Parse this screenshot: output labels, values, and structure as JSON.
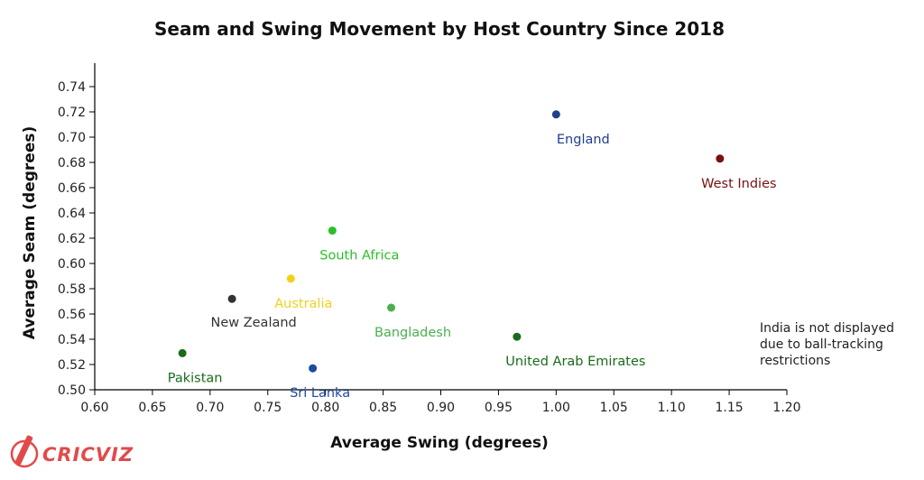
{
  "chart_data": {
    "type": "scatter",
    "title": "Seam and Swing Movement by Host Country Since 2018",
    "xlabel": "Average Swing (degrees)",
    "ylabel": "Average Seam (degrees)",
    "xlim": [
      0.6,
      1.2
    ],
    "ylim": [
      0.5,
      0.75
    ],
    "xticks": [
      "0.60",
      "0.65",
      "0.70",
      "0.75",
      "0.80",
      "0.85",
      "0.90",
      "0.95",
      "1.00",
      "1.05",
      "1.10",
      "1.15",
      "1.20"
    ],
    "yticks": [
      "0.50",
      "0.52",
      "0.54",
      "0.56",
      "0.58",
      "0.60",
      "0.62",
      "0.64",
      "0.66",
      "0.68",
      "0.70",
      "0.72",
      "0.74"
    ],
    "grid": false,
    "points": [
      {
        "name": "England",
        "x": 1.0,
        "y": 0.718,
        "color": "#1f3f8f",
        "label_pos": "below"
      },
      {
        "name": "West Indies",
        "x": 1.142,
        "y": 0.683,
        "color": "#7a1010",
        "label_pos": "below"
      },
      {
        "name": "South Africa",
        "x": 0.806,
        "y": 0.626,
        "color": "#29c029",
        "label_pos": "below"
      },
      {
        "name": "Australia",
        "x": 0.77,
        "y": 0.588,
        "color": "#f2d11b",
        "label_pos": "below"
      },
      {
        "name": "New Zealand",
        "x": 0.719,
        "y": 0.572,
        "color": "#333333",
        "label_pos": "below-far"
      },
      {
        "name": "Bangladesh",
        "x": 0.857,
        "y": 0.565,
        "color": "#4caf50",
        "label_pos": "below"
      },
      {
        "name": "United Arab Emirates",
        "x": 0.966,
        "y": 0.542,
        "color": "#1a6b1a",
        "label_pos": "below"
      },
      {
        "name": "Pakistan",
        "x": 0.676,
        "y": 0.529,
        "color": "#1a6b1a",
        "label_pos": "below"
      },
      {
        "name": "Sri Lanka",
        "x": 0.789,
        "y": 0.517,
        "color": "#1f4aa0",
        "label_pos": "below"
      }
    ],
    "annotation": {
      "lines": [
        "India is not displayed",
        "due to ball-tracking",
        "restrictions"
      ],
      "position": "right-middle"
    }
  },
  "logo": {
    "text": "CRICVIZ",
    "color": "#e24a4a"
  }
}
